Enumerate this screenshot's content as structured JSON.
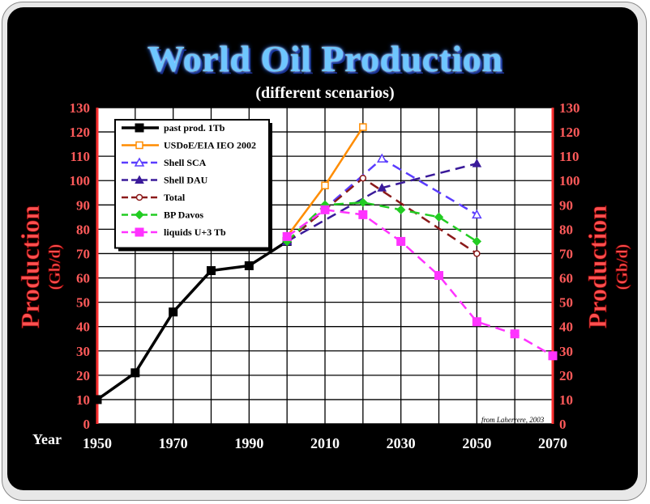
{
  "title": "World Oil Production",
  "subtitle": "(different scenarios)",
  "credit": "from Laherrere, 2003",
  "chart_data": {
    "type": "line",
    "title": "World Oil Production",
    "subtitle": "(different scenarios)",
    "ylabel": "Production",
    "ylabel_unit": "(Gb/d)",
    "xlabel": "Year",
    "xlim": [
      1950,
      2070
    ],
    "ylim": [
      0,
      130
    ],
    "xticks": [
      1950,
      1970,
      1990,
      2010,
      2030,
      2050,
      2070
    ],
    "yticks": [
      0,
      10,
      20,
      30,
      40,
      50,
      60,
      70,
      80,
      90,
      100,
      110,
      120,
      130
    ],
    "grid": true,
    "legend_position": "top-left",
    "series": [
      {
        "name": "past prod. 1Tb",
        "color": "#000000",
        "marker": "square-filled",
        "dash": "solid",
        "x": [
          1950,
          1960,
          1970,
          1980,
          1990,
          2000
        ],
        "y": [
          10,
          21,
          46,
          63,
          65,
          75
        ]
      },
      {
        "name": "USDoE/EIA IEO 2002",
        "color": "#ff8c00",
        "marker": "square-open",
        "dash": "solid",
        "x": [
          2000,
          2010,
          2020
        ],
        "y": [
          77,
          98,
          122
        ]
      },
      {
        "name": "Shell SCA",
        "color": "#5a3cff",
        "marker": "triangle-open",
        "dash": "dashed",
        "x": [
          2000,
          2025,
          2050
        ],
        "y": [
          75,
          109,
          86
        ]
      },
      {
        "name": "Shell DAU",
        "color": "#3a1a9a",
        "marker": "triangle-filled",
        "dash": "dashed",
        "x": [
          2000,
          2025,
          2050
        ],
        "y": [
          75,
          97,
          107
        ]
      },
      {
        "name": "Total",
        "color": "#8b1a1a",
        "marker": "circle-open",
        "dash": "dashed",
        "x": [
          2000,
          2020,
          2050
        ],
        "y": [
          75,
          101,
          70
        ]
      },
      {
        "name": "BP Davos",
        "color": "#22cc22",
        "marker": "diamond-filled",
        "dash": "dashed",
        "x": [
          2000,
          2010,
          2020,
          2030,
          2040,
          2050
        ],
        "y": [
          75,
          90,
          91,
          88,
          85,
          75
        ]
      },
      {
        "name": "liquids U+3 Tb",
        "color": "#ff33ff",
        "marker": "square-filled",
        "dash": "dashed",
        "x": [
          2000,
          2010,
          2020,
          2030,
          2040,
          2050,
          2060,
          2070
        ],
        "y": [
          77,
          88,
          86,
          75,
          61,
          42,
          37,
          28
        ]
      }
    ]
  }
}
